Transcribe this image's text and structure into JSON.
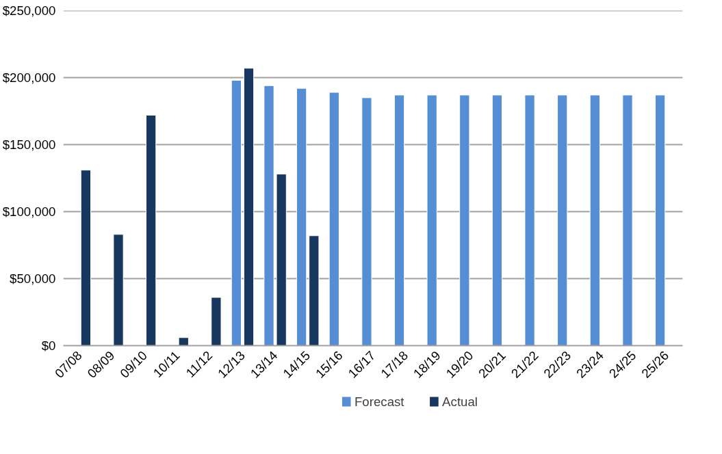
{
  "chart_data": {
    "type": "bar",
    "categories": [
      "07/08",
      "08/09",
      "09/10",
      "10/11",
      "11/12",
      "12/13",
      "13/14",
      "14/15",
      "15/16",
      "16/17",
      "17/18",
      "18/19",
      "19/20",
      "20/21",
      "21/22",
      "22/23",
      "23/24",
      "24/25",
      "25/26"
    ],
    "series": [
      {
        "name": "Forecast",
        "color": "#558ed5",
        "values": [
          null,
          null,
          null,
          null,
          null,
          198000,
          194000,
          192000,
          189000,
          185000,
          187000,
          187000,
          187000,
          187000,
          187000,
          187000,
          187000,
          187000,
          187000
        ]
      },
      {
        "name": "Actual",
        "color": "#17375e",
        "values": [
          131000,
          83000,
          172000,
          6000,
          36000,
          207000,
          128000,
          82000,
          null,
          null,
          null,
          null,
          null,
          null,
          null,
          null,
          null,
          null,
          null
        ]
      }
    ],
    "ylim": [
      0,
      250000
    ],
    "yticks": [
      {
        "value": 0,
        "label": "$0"
      },
      {
        "value": 50000,
        "label": "$50,000"
      },
      {
        "value": 100000,
        "label": "$100,000"
      },
      {
        "value": 150000,
        "label": "$150,000"
      },
      {
        "value": 200000,
        "label": "$200,000"
      },
      {
        "value": 250000,
        "label": "$250,000"
      }
    ],
    "grid": "y",
    "legend": "bottom"
  }
}
